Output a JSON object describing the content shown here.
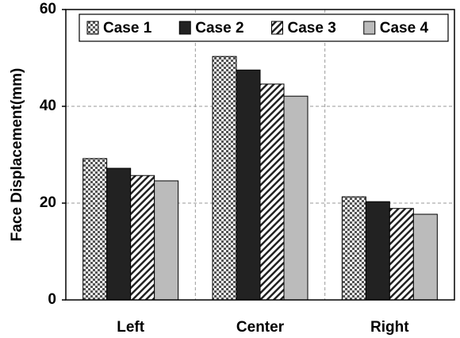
{
  "chart_data": {
    "type": "bar",
    "y_label": "Face Displacement(mm)",
    "categories": [
      "Left",
      "Center",
      "Right"
    ],
    "series": [
      {
        "name": "Case 1",
        "color": "#555555",
        "pattern": "checker",
        "values": [
          29.2,
          50.3,
          21.3
        ]
      },
      {
        "name": "Case 2",
        "color": "#222222",
        "pattern": "solid",
        "values": [
          27.2,
          47.5,
          20.3
        ]
      },
      {
        "name": "Case 3",
        "color": "#222222",
        "pattern": "hatch",
        "values": [
          25.7,
          44.6,
          18.9
        ]
      },
      {
        "name": "Case 4",
        "color": "#bbbbbb",
        "pattern": "solid",
        "values": [
          24.6,
          42.1,
          17.7
        ]
      }
    ],
    "ylim": [
      0,
      60
    ],
    "yticks": [
      0,
      20,
      40,
      60
    ],
    "grid": true,
    "legend": "upper center"
  }
}
